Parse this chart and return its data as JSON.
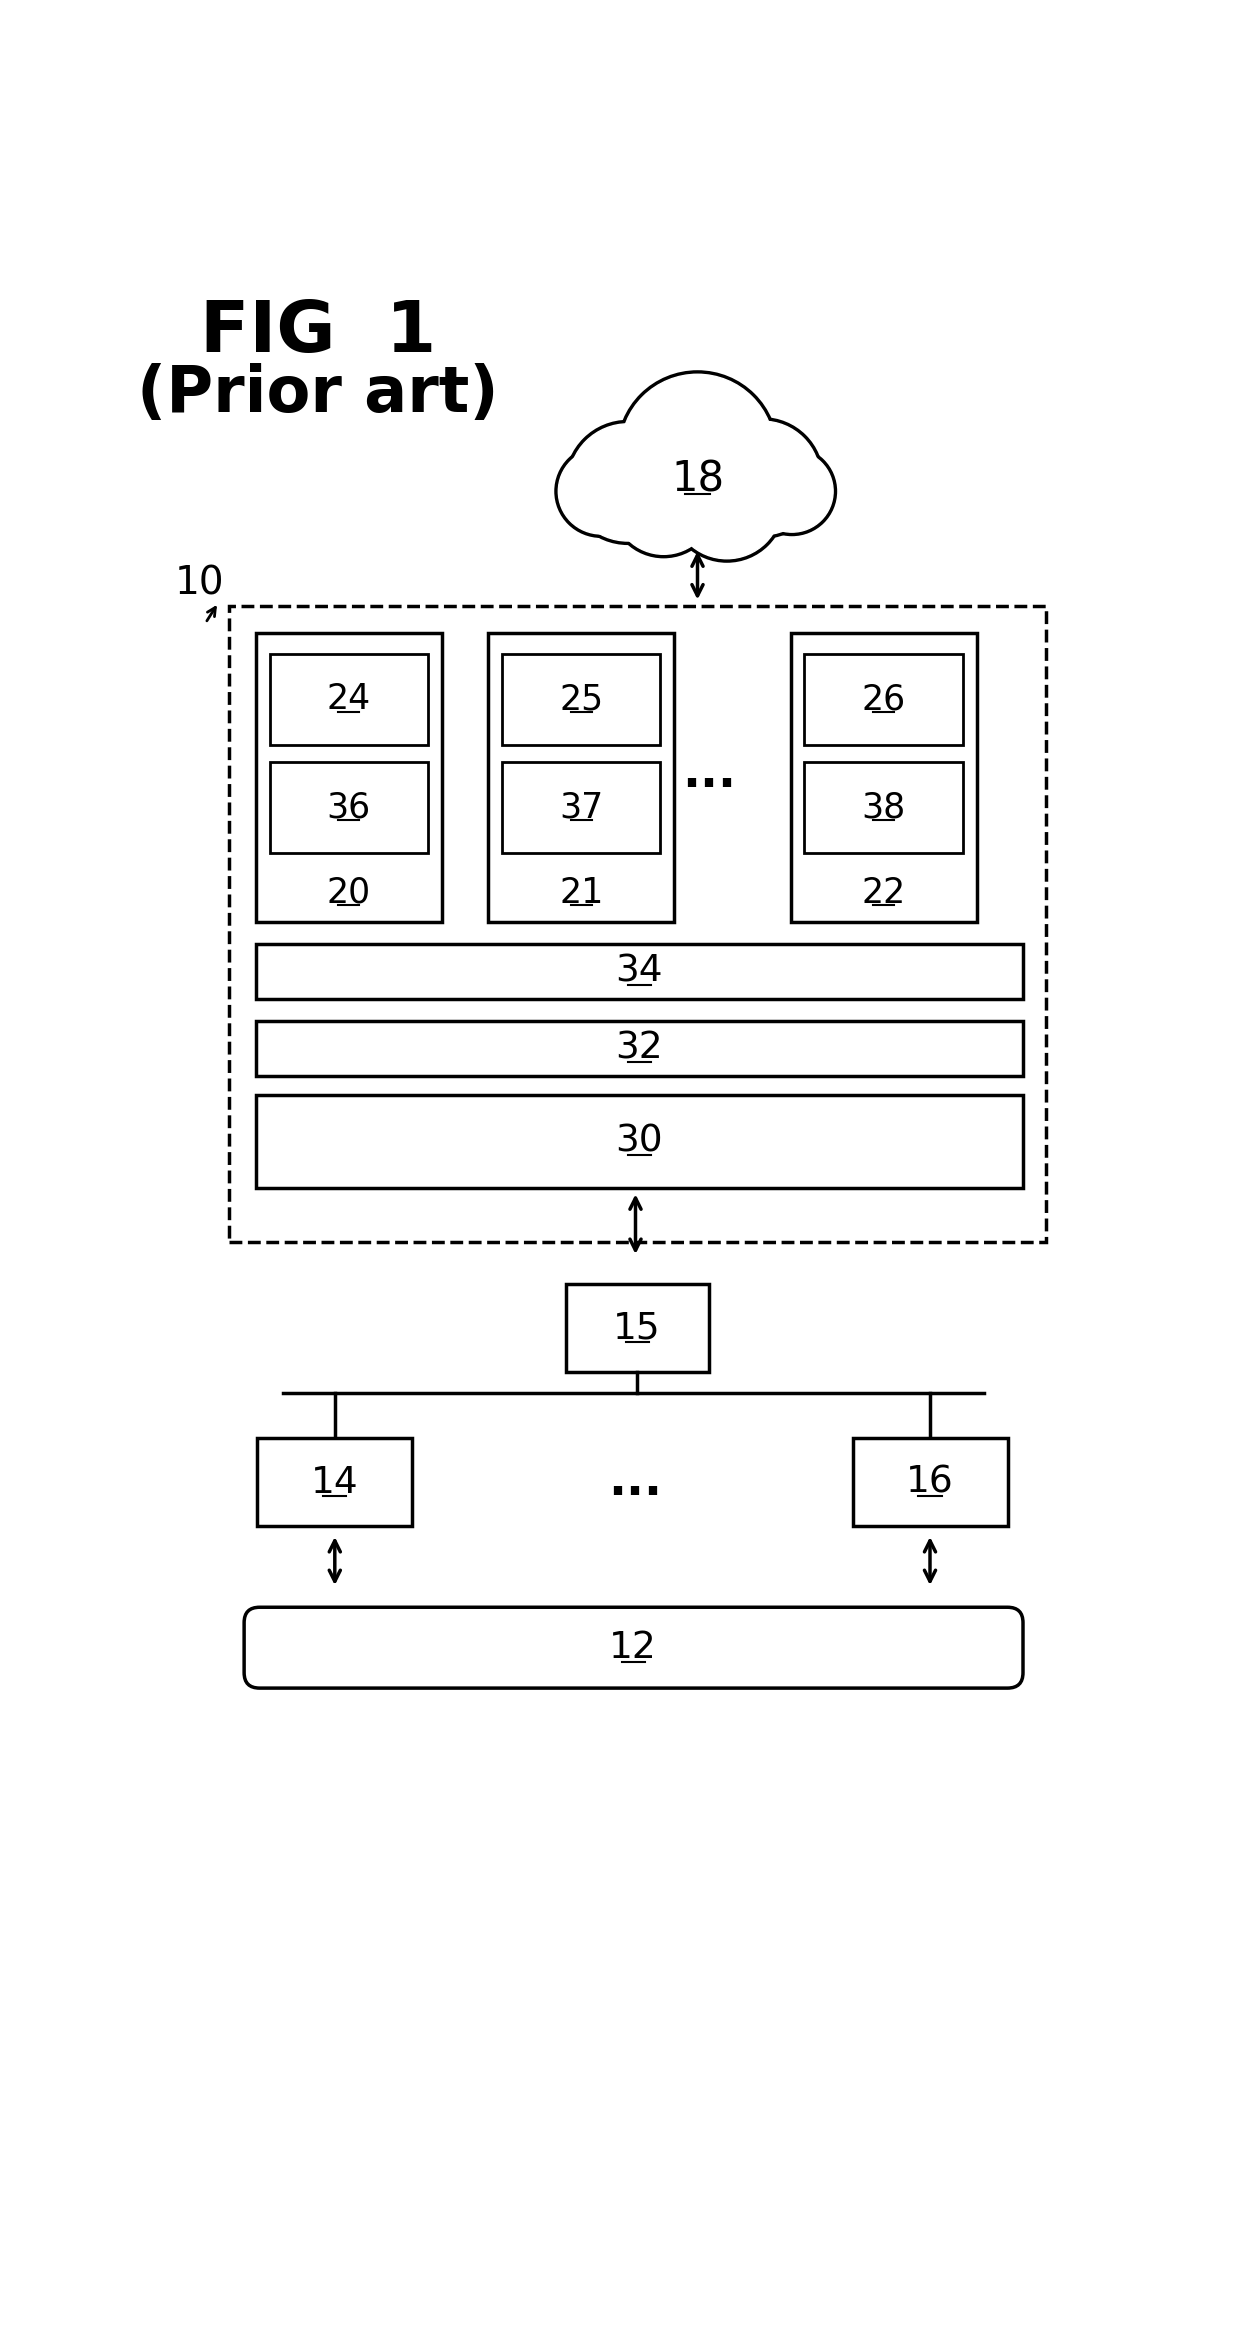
{
  "fig_title": "FIG  1",
  "fig_subtitle": "(Prior art)",
  "bg_color": "#ffffff",
  "line_color": "#000000",
  "cloud_label": "18",
  "main_box_label": "10",
  "node_labels": [
    "20",
    "21",
    "22"
  ],
  "inner_top_labels": [
    "24",
    "25",
    "26"
  ],
  "inner_bot_labels": [
    "36",
    "37",
    "38"
  ],
  "bar_labels": [
    "34",
    "32",
    "30"
  ],
  "bottom_labels": [
    "14",
    "15",
    "16",
    "12"
  ],
  "dots": "..."
}
